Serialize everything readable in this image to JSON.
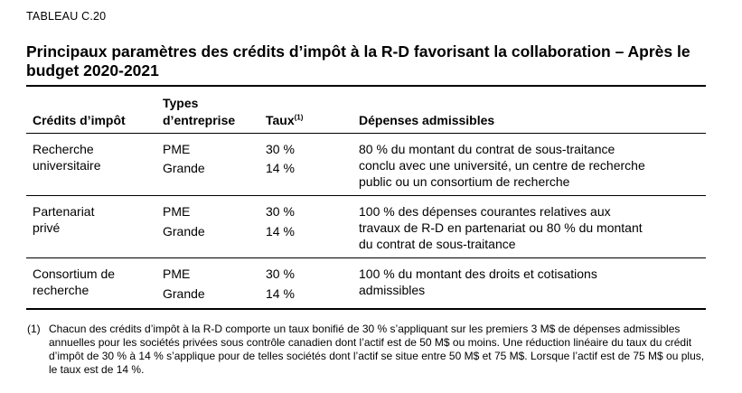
{
  "table_label": "TABLEAU C.20",
  "title": "Principaux paramètres des crédits d’impôt à la R-D favorisant la collaboration – Après le budget 2020-2021",
  "headers": {
    "credit": "Crédits d’impôt",
    "types_line1": "Types",
    "types_line2": "d’entreprise",
    "taux": "Taux",
    "taux_note": "(1)",
    "depenses": "Dépenses admissibles"
  },
  "rows": [
    {
      "credit_line1": "Recherche",
      "credit_line2": "universitaire",
      "type1": "PME",
      "type2": "Grande",
      "taux1": "30 %",
      "taux2": "14 %",
      "dep_lines": [
        "80 % du montant du contrat de sous-traitance",
        "conclu avec une université, un centre de recherche",
        "public ou un consortium de recherche"
      ]
    },
    {
      "credit_line1": "Partenariat",
      "credit_line2": "privé",
      "type1": "PME",
      "type2": "Grande",
      "taux1": "30 %",
      "taux2": "14 %",
      "dep_lines": [
        "100 % des dépenses courantes relatives aux",
        "travaux de R-D en partenariat ou 80 % du montant",
        "du contrat de sous-traitance"
      ]
    },
    {
      "credit_line1": "Consortium de",
      "credit_line2": "recherche",
      "type1": "PME",
      "type2": "Grande",
      "taux1": "30 %",
      "taux2": "14 %",
      "dep_lines": [
        "100 % du montant des droits et cotisations",
        "admissibles"
      ]
    }
  ],
  "footnote": {
    "number": "(1)",
    "text": "Chacun des crédits d’impôt à la R-D comporte un taux bonifié de 30 % s’appliquant sur les premiers 3 M$ de dépenses admissibles annuelles pour les sociétés privées sous contrôle canadien dont l’actif est de 50 M$ ou moins. Une réduction linéaire du taux du crédit d’impôt de 30 % à 14 % s’applique pour de telles sociétés dont l’actif se situe entre 50 M$ et 75 M$. Lorsque l’actif est de 75 M$ ou plus, le taux est de 14 %."
  }
}
